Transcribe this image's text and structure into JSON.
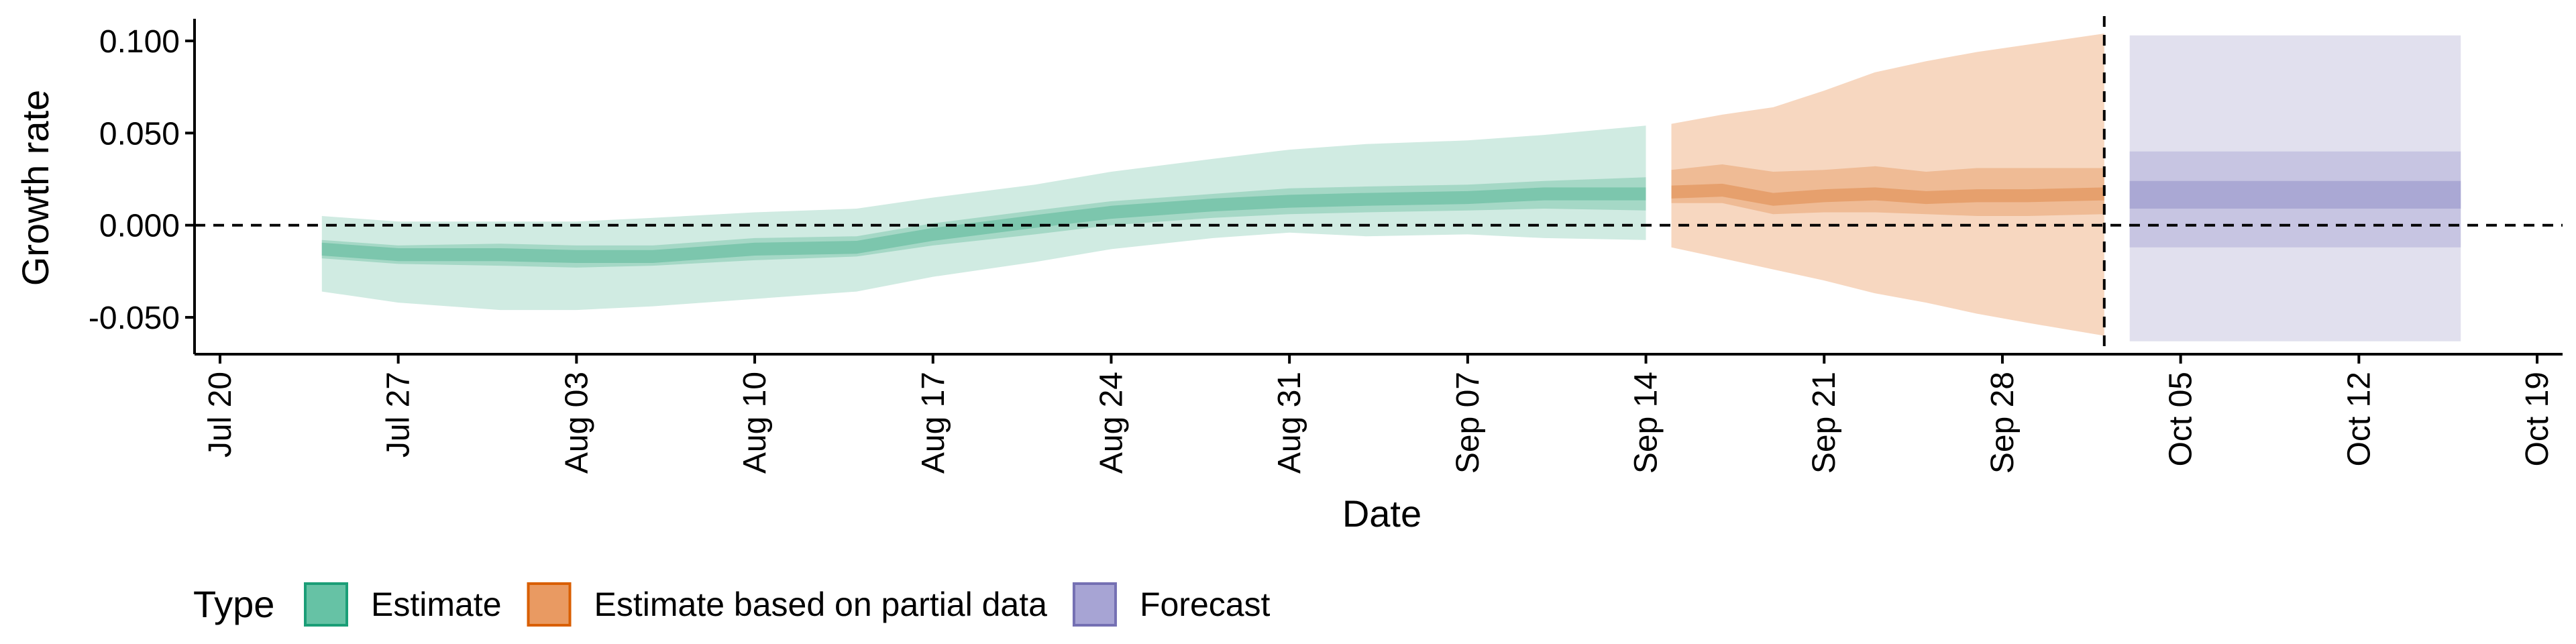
{
  "chart_data": {
    "type": "area",
    "title": "",
    "xlabel": "Date",
    "ylabel": "Growth rate",
    "x_range": [
      "2020-07-19",
      "2020-10-20"
    ],
    "ylim": [
      -0.07,
      0.112
    ],
    "x_ticks": [
      "Jul 20",
      "Jul 27",
      "Aug 03",
      "Aug 10",
      "Aug 17",
      "Aug 24",
      "Aug 31",
      "Sep 07",
      "Sep 14",
      "Sep 21",
      "Sep 28",
      "Oct 05",
      "Oct 12",
      "Oct 19"
    ],
    "x_tick_dates": [
      "2020-07-20",
      "2020-07-27",
      "2020-08-03",
      "2020-08-10",
      "2020-08-17",
      "2020-08-24",
      "2020-08-31",
      "2020-09-07",
      "2020-09-14",
      "2020-09-21",
      "2020-09-28",
      "2020-10-05",
      "2020-10-12",
      "2020-10-19"
    ],
    "y_ticks": [
      0.1,
      0.05,
      0.0,
      -0.05
    ],
    "y_tick_labels": [
      "0.100",
      "0.050",
      "0.000",
      "-0.050"
    ],
    "hlines": [
      {
        "y": 0.0,
        "style": "dashed"
      }
    ],
    "vlines": [
      {
        "x": "2020-10-02",
        "style": "dashed"
      }
    ],
    "grid": false,
    "legend": {
      "position": "bottom-left",
      "title": "Type",
      "entries": [
        {
          "label": "Estimate",
          "fill": "#66c2a5",
          "stroke": "#1b9e77"
        },
        {
          "label": "Estimate based on partial data",
          "fill": "#e99a62",
          "stroke": "#d95f02"
        },
        {
          "label": "Forecast",
          "fill": "#a7a4d4",
          "stroke": "#7570b3"
        }
      ]
    },
    "series": [
      {
        "name": "Estimate",
        "color": "#1b9e77",
        "x_start": "2020-07-24",
        "x_end": "2020-09-14",
        "x": [
          "2020-07-24",
          "2020-07-27",
          "2020-07-31",
          "2020-08-03",
          "2020-08-06",
          "2020-08-10",
          "2020-08-14",
          "2020-08-17",
          "2020-08-21",
          "2020-08-24",
          "2020-08-28",
          "2020-08-31",
          "2020-09-03",
          "2020-09-07",
          "2020-09-10",
          "2020-09-14"
        ],
        "median": [
          -0.013,
          -0.016,
          -0.016,
          -0.017,
          -0.017,
          -0.013,
          -0.012,
          -0.005,
          0.002,
          0.007,
          0.011,
          0.013,
          0.014,
          0.015,
          0.017,
          0.017
        ],
        "lower_50": [
          -0.018,
          -0.021,
          -0.022,
          -0.023,
          -0.022,
          -0.019,
          -0.017,
          -0.011,
          -0.005,
          0.0,
          0.004,
          0.006,
          0.007,
          0.008,
          0.009,
          0.008
        ],
        "upper_50": [
          -0.008,
          -0.011,
          -0.01,
          -0.011,
          -0.011,
          -0.007,
          -0.006,
          0.001,
          0.008,
          0.013,
          0.017,
          0.02,
          0.021,
          0.022,
          0.024,
          0.026
        ],
        "lower_90": [
          -0.036,
          -0.042,
          -0.046,
          -0.046,
          -0.044,
          -0.04,
          -0.036,
          -0.028,
          -0.02,
          -0.013,
          -0.007,
          -0.004,
          -0.006,
          -0.005,
          -0.007,
          -0.008
        ],
        "upper_90": [
          0.005,
          0.002,
          0.002,
          0.002,
          0.004,
          0.007,
          0.009,
          0.015,
          0.022,
          0.029,
          0.036,
          0.041,
          0.044,
          0.046,
          0.049,
          0.054
        ]
      },
      {
        "name": "Estimate based on partial data",
        "color": "#d95f02",
        "x_start": "2020-09-15",
        "x_end": "2020-10-02",
        "x": [
          "2020-09-15",
          "2020-09-17",
          "2020-09-19",
          "2020-09-21",
          "2020-09-23",
          "2020-09-25",
          "2020-09-27",
          "2020-09-29",
          "2020-10-02"
        ],
        "median": [
          0.018,
          0.019,
          0.014,
          0.016,
          0.017,
          0.015,
          0.016,
          0.016,
          0.017
        ],
        "lower_50": [
          0.012,
          0.012,
          0.006,
          0.007,
          0.007,
          0.006,
          0.005,
          0.005,
          0.006
        ],
        "upper_50": [
          0.03,
          0.033,
          0.029,
          0.03,
          0.032,
          0.029,
          0.031,
          0.031,
          0.031
        ],
        "lower_90": [
          -0.012,
          -0.018,
          -0.024,
          -0.03,
          -0.037,
          -0.042,
          -0.048,
          -0.053,
          -0.06
        ],
        "upper_90": [
          0.055,
          0.06,
          0.064,
          0.073,
          0.083,
          0.089,
          0.094,
          0.098,
          0.104
        ]
      },
      {
        "name": "Forecast",
        "color": "#7570b3",
        "x_start": "2020-10-03",
        "x_end": "2020-10-16",
        "x": [
          "2020-10-03",
          "2020-10-16"
        ],
        "median": [
          0.016,
          0.016
        ],
        "lower_50": [
          0.009,
          0.009
        ],
        "upper_50": [
          0.024,
          0.024
        ],
        "lower_90": [
          -0.012,
          -0.012
        ],
        "upper_90": [
          0.04,
          0.04
        ],
        "lower_outer": [
          -0.063,
          -0.063
        ],
        "upper_outer": [
          0.103,
          0.103
        ]
      }
    ]
  }
}
